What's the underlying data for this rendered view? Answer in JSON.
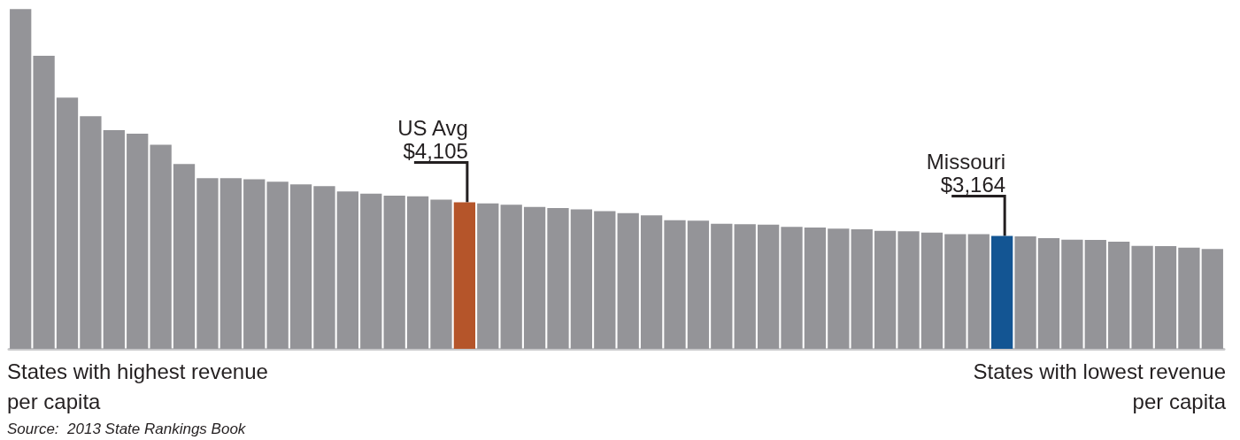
{
  "chart_data": {
    "type": "bar",
    "categories": [
      null,
      null,
      null,
      null,
      null,
      null,
      null,
      null,
      null,
      null,
      null,
      null,
      null,
      null,
      null,
      null,
      null,
      null,
      null,
      null,
      null,
      null,
      null,
      null,
      null,
      null,
      null,
      null,
      null,
      null,
      null,
      null,
      null,
      null,
      null,
      null,
      null,
      null,
      null,
      null,
      null,
      null,
      null,
      null,
      null,
      null,
      null,
      null,
      null,
      null,
      null,
      null
    ],
    "values": [
      9520,
      8210,
      7040,
      6520,
      6130,
      6030,
      5720,
      5180,
      4780,
      4780,
      4750,
      4680,
      4610,
      4560,
      4410,
      4350,
      4290,
      4270,
      4180,
      4105,
      4075,
      4040,
      3975,
      3945,
      3910,
      3860,
      3800,
      3740,
      3605,
      3590,
      3505,
      3490,
      3480,
      3415,
      3400,
      3365,
      3350,
      3305,
      3290,
      3255,
      3215,
      3210,
      3164,
      3150,
      3100,
      3060,
      3050,
      3000,
      2885,
      2875,
      2835,
      2795
    ],
    "colors": [
      "#949498",
      "#949498",
      "#949498",
      "#949498",
      "#949498",
      "#949498",
      "#949498",
      "#949498",
      "#949498",
      "#949498",
      "#949498",
      "#949498",
      "#949498",
      "#949498",
      "#949498",
      "#949498",
      "#949498",
      "#949498",
      "#949498",
      "#b5552a",
      "#949498",
      "#949498",
      "#949498",
      "#949498",
      "#949498",
      "#949498",
      "#949498",
      "#949498",
      "#949498",
      "#949498",
      "#949498",
      "#949498",
      "#949498",
      "#949498",
      "#949498",
      "#949498",
      "#949498",
      "#949498",
      "#949498",
      "#949498",
      "#949498",
      "#949498",
      "#135593",
      "#949498",
      "#949498",
      "#949498",
      "#949498",
      "#949498",
      "#949498",
      "#949498",
      "#949498",
      "#949498"
    ],
    "value_labels": [
      null,
      null,
      null,
      null,
      null,
      null,
      null,
      null,
      null,
      null,
      null,
      null,
      null,
      null,
      null,
      null,
      null,
      null,
      null,
      "$4,105",
      null,
      null,
      null,
      null,
      null,
      null,
      null,
      null,
      null,
      null,
      null,
      null,
      null,
      null,
      null,
      null,
      null,
      null,
      null,
      null,
      null,
      null,
      "$3,164",
      null,
      null,
      null,
      null,
      null,
      null,
      null,
      null,
      null
    ],
    "annotations": [
      {
        "text": "US Avg",
        "y": 4105
      },
      {
        "text": "Missouri",
        "y": 3164
      },
      "States with highest revenue\nper capita",
      "States with lowest revenue\nper capita",
      "Source:  2013 State Rankings Book"
    ],
    "ylim": [
      0,
      9600
    ],
    "tick_labels": false
  }
}
